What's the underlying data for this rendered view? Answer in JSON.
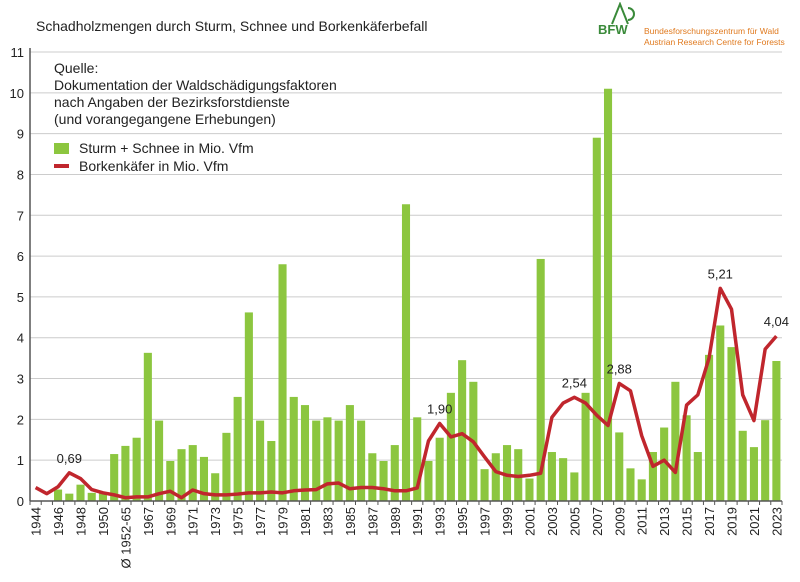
{
  "title": "Schadholzmengen durch Sturm, Schnee und Borkenkäferbefall",
  "logo": {
    "abbr": "BFW",
    "line1": "Bundesforschungszentrum für Wald",
    "line2": "Austrian Research Centre for Forests"
  },
  "source": [
    "Quelle:",
    "Dokumentation der Waldschädigungsfaktoren",
    "nach Angaben der Bezirksforstdienste",
    "(und vorangegangene Erhebungen)"
  ],
  "colors": {
    "bar": "#8cc63f",
    "line": "#c0262d",
    "grid": "#cccccc"
  },
  "chart_data": {
    "type": "bar+line",
    "title": "Schadholzmengen durch Sturm, Schnee und Borkenkäferbefall",
    "ylim": [
      0,
      11
    ],
    "yticks": [
      0,
      1,
      2,
      3,
      4,
      5,
      6,
      7,
      8,
      9,
      10,
      11
    ],
    "grid": true,
    "legend_position": "top-left",
    "categories": [
      "1944",
      "1945",
      "1946",
      "1947",
      "1948",
      "1949",
      "1950",
      "1951",
      "Ø 1952-65",
      "1966",
      "1967",
      "1968",
      "1969",
      "1970",
      "1971",
      "1972",
      "1973",
      "1974",
      "1975",
      "1976",
      "1977",
      "1978",
      "1979",
      "1980",
      "1981",
      "1982",
      "1983",
      "1984",
      "1985",
      "1986",
      "1987",
      "1988",
      "1989",
      "1990",
      "1991",
      "1992",
      "1993",
      "1994",
      "1995",
      "1996",
      "1997",
      "1998",
      "1999",
      "2000",
      "2001",
      "2002",
      "2003",
      "2004",
      "2005",
      "2006",
      "2007",
      "2008",
      "2009",
      "2010",
      "2011",
      "2012",
      "2013",
      "2014",
      "2015",
      "2016",
      "2017",
      "2018",
      "2019",
      "2020",
      "2021",
      "2022",
      "2023"
    ],
    "series": [
      {
        "name": "Sturm + Schnee in Mio. Vfm",
        "type": "bar",
        "values": [
          0,
          0,
          0.28,
          0.18,
          0.4,
          0.2,
          0.2,
          1.15,
          1.35,
          1.55,
          3.63,
          1.97,
          0.98,
          1.27,
          1.37,
          1.08,
          0.68,
          1.67,
          2.55,
          4.62,
          1.97,
          1.47,
          5.8,
          2.55,
          2.35,
          1.97,
          2.05,
          1.97,
          2.35,
          1.97,
          1.17,
          0.98,
          1.37,
          7.27,
          2.05,
          0.98,
          1.55,
          2.65,
          3.45,
          2.92,
          0.78,
          1.17,
          1.37,
          1.27,
          0.55,
          5.93,
          1.2,
          1.05,
          0.7,
          2.65,
          8.9,
          10.1,
          1.68,
          0.8,
          0.53,
          1.2,
          1.8,
          2.92,
          2.1,
          1.2,
          3.58,
          4.3,
          3.77,
          1.72,
          1.32,
          1.98,
          3.43
        ]
      },
      {
        "name": "Borkenkäfer in Mio. Vfm",
        "type": "line",
        "values": [
          0.33,
          0.18,
          0.35,
          0.69,
          0.55,
          0.28,
          0.2,
          0.15,
          0.08,
          0.1,
          0.1,
          0.18,
          0.24,
          0.08,
          0.27,
          0.18,
          0.15,
          0.15,
          0.17,
          0.2,
          0.2,
          0.22,
          0.2,
          0.25,
          0.27,
          0.28,
          0.42,
          0.44,
          0.3,
          0.33,
          0.33,
          0.3,
          0.25,
          0.25,
          0.32,
          1.47,
          1.9,
          1.57,
          1.65,
          1.45,
          1.08,
          0.72,
          0.63,
          0.6,
          0.63,
          0.68,
          2.05,
          2.4,
          2.54,
          2.4,
          2.1,
          1.85,
          2.88,
          2.7,
          1.6,
          0.85,
          1.0,
          0.7,
          2.35,
          2.6,
          3.5,
          5.21,
          4.7,
          2.6,
          1.97,
          3.72,
          4.04
        ]
      }
    ],
    "annotations": [
      {
        "category": "1947",
        "label": "0,69"
      },
      {
        "category": "1993",
        "label": "1,90"
      },
      {
        "category": "2005",
        "label": "2,54"
      },
      {
        "category": "2009",
        "label": "2,88"
      },
      {
        "category": "2018",
        "label": "5,21"
      },
      {
        "category": "2023",
        "label": "4,04"
      }
    ]
  }
}
